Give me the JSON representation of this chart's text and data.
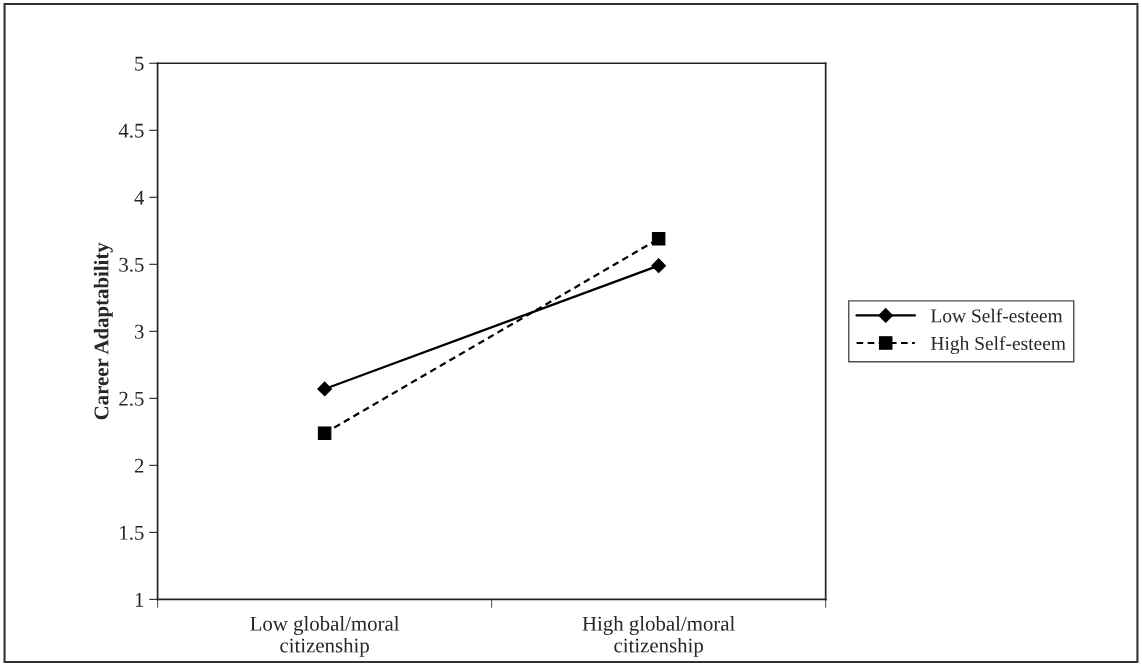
{
  "chart_data": {
    "type": "line",
    "ylabel": "Career Adaptability",
    "categories": [
      "Low global/moral\ncitizenship",
      "High global/moral\ncitizenship"
    ],
    "series": [
      {
        "name": "Low Self-esteem",
        "color": "#000000",
        "values": [
          2.57,
          3.49
        ],
        "marker": "diamond",
        "line_style": "solid"
      },
      {
        "name": "High Self-esteem",
        "color": "#000000",
        "values": [
          2.24,
          3.69
        ],
        "marker": "square",
        "line_style": "dashed"
      }
    ],
    "ylim": [
      1,
      5
    ],
    "yticks": [
      1,
      1.5,
      2,
      2.5,
      3,
      3.5,
      4,
      4.5,
      5
    ],
    "grid": false,
    "legend": "right"
  }
}
